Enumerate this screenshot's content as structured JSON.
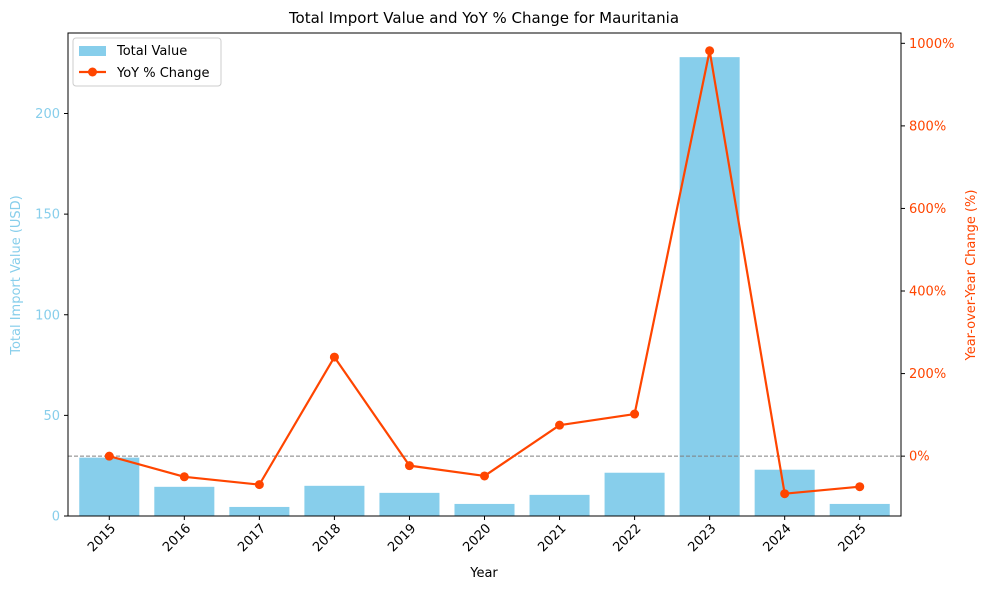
{
  "chart_data": {
    "type": "bar",
    "title": "Total Import Value and YoY % Change for Mauritania",
    "xlabel": "Year",
    "ylabel": "Total Import Value (USD)",
    "y2label": "Year-over-Year Change (%)",
    "categories": [
      "2015",
      "2016",
      "2017",
      "2018",
      "2019",
      "2020",
      "2021",
      "2022",
      "2023",
      "2024",
      "2025"
    ],
    "series": [
      {
        "name": "Total Value",
        "type": "bar",
        "axis": "left",
        "color": "#87ceeb",
        "values": [
          29,
          14.5,
          4.5,
          15,
          11.5,
          6,
          10.5,
          21.5,
          228,
          23,
          6
        ]
      },
      {
        "name": "YoY % Change",
        "type": "line",
        "axis": "right",
        "color": "#ff4500",
        "values": [
          0,
          -50,
          -69,
          240,
          -23,
          -48,
          75,
          102,
          982,
          -91,
          -74
        ]
      }
    ],
    "ylim": [
      0,
      240
    ],
    "y2lim": [
      -145,
      1025
    ],
    "yticks": [
      0,
      50,
      100,
      150,
      200
    ],
    "y2ticks": [
      0,
      200,
      400,
      600,
      800,
      1000
    ],
    "y2tick_suffix": "%",
    "reference_line": {
      "axis": "right",
      "value": 0,
      "style": "dashed",
      "color": "#808080"
    },
    "legend": {
      "placement": "upper-left",
      "entries": [
        "Total Value",
        "YoY % Change"
      ]
    },
    "grid": false
  }
}
